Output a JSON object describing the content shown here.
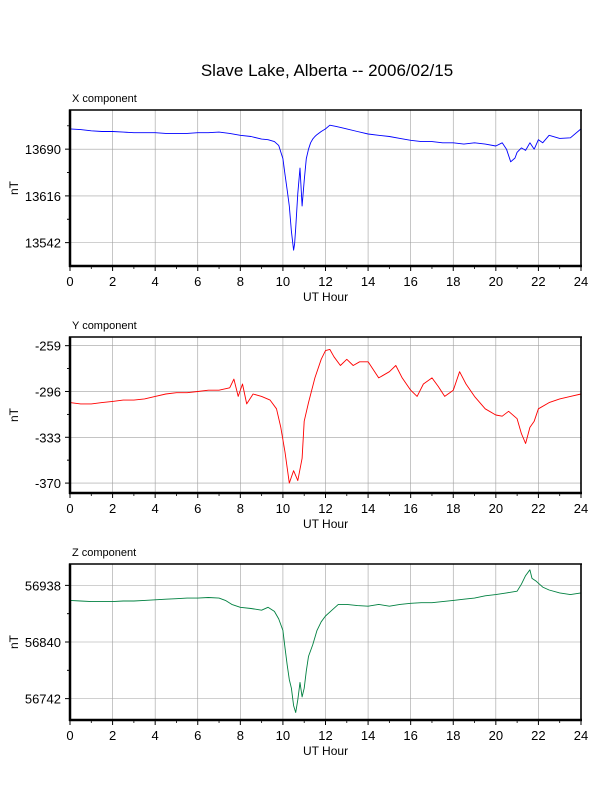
{
  "page": {
    "title": "Slave Lake, Alberta -- 2006/02/15"
  },
  "chart_data": [
    {
      "type": "line",
      "title": "X component",
      "xlabel": "UT Hour",
      "ylabel": "nT",
      "color": "#0000ff",
      "grid": true,
      "xlim": [
        0,
        24
      ],
      "ylim": [
        13505,
        13752
      ],
      "xticks": [
        0,
        2,
        4,
        6,
        8,
        10,
        12,
        14,
        16,
        18,
        20,
        22,
        24
      ],
      "yticks": [
        13542,
        13616,
        13690
      ],
      "series": [
        {
          "x": [
            0,
            0.5,
            1,
            1.5,
            2,
            2.5,
            3,
            3.5,
            4,
            4.5,
            5,
            5.5,
            6,
            6.5,
            7,
            7.5,
            8,
            8.5,
            9,
            9.3,
            9.6,
            9.8,
            10,
            10.1,
            10.2,
            10.3,
            10.4,
            10.5,
            10.55,
            10.6,
            10.7,
            10.8,
            10.9,
            11,
            11.1,
            11.2,
            11.3,
            11.4,
            11.5,
            11.6,
            11.8,
            12,
            12.2,
            12.5,
            13,
            13.5,
            14,
            14.5,
            15,
            15.5,
            16,
            16.5,
            17,
            17.5,
            18,
            18.5,
            19,
            19.5,
            20,
            20.3,
            20.5,
            20.7,
            20.9,
            21,
            21.2,
            21.4,
            21.6,
            21.8,
            22,
            22.2,
            22.5,
            23,
            23.5,
            24
          ],
          "y": [
            13722,
            13721,
            13719,
            13718,
            13718,
            13717,
            13716,
            13716,
            13716,
            13715,
            13715,
            13715,
            13716,
            13716,
            13717,
            13715,
            13712,
            13710,
            13706,
            13705,
            13702,
            13696,
            13675,
            13650,
            13625,
            13600,
            13560,
            13530,
            13540,
            13565,
            13620,
            13660,
            13600,
            13640,
            13675,
            13690,
            13700,
            13706,
            13710,
            13713,
            13718,
            13722,
            13728,
            13726,
            13722,
            13718,
            13714,
            13712,
            13710,
            13707,
            13704,
            13702,
            13702,
            13700,
            13700,
            13698,
            13700,
            13698,
            13695,
            13700,
            13690,
            13670,
            13676,
            13685,
            13692,
            13688,
            13700,
            13690,
            13705,
            13700,
            13712,
            13707,
            13708,
            13722
          ]
        }
      ]
    },
    {
      "type": "line",
      "title": "Y component",
      "xlabel": "UT Hour",
      "ylabel": "nT",
      "color": "#ff0000",
      "grid": true,
      "xlim": [
        0,
        24
      ],
      "ylim": [
        -378,
        -252
      ],
      "xticks": [
        0,
        2,
        4,
        6,
        8,
        10,
        12,
        14,
        16,
        18,
        20,
        22,
        24
      ],
      "yticks": [
        -259,
        -296,
        -333,
        -370
      ],
      "series": [
        {
          "x": [
            0,
            0.5,
            1,
            1.5,
            2,
            2.5,
            3,
            3.5,
            4,
            4.5,
            5,
            5.5,
            6,
            6.5,
            7,
            7.5,
            7.7,
            7.9,
            8.1,
            8.3,
            8.6,
            9,
            9.4,
            9.7,
            9.9,
            10.1,
            10.3,
            10.5,
            10.7,
            10.9,
            11,
            11.2,
            11.5,
            11.8,
            12,
            12.2,
            12.4,
            12.7,
            13,
            13.3,
            13.6,
            14,
            14.5,
            15,
            15.3,
            15.6,
            16,
            16.3,
            16.6,
            17,
            17.3,
            17.6,
            18,
            18.3,
            18.6,
            19,
            19.5,
            20,
            20.3,
            20.6,
            21,
            21.2,
            21.4,
            21.6,
            21.8,
            22,
            22.5,
            23,
            23.5,
            24
          ],
          "y": [
            -305,
            -306,
            -306,
            -305,
            -304,
            -303,
            -303,
            -302,
            -300,
            -298,
            -297,
            -297,
            -296,
            -295,
            -295,
            -293,
            -286,
            -300,
            -290,
            -306,
            -298,
            -300,
            -303,
            -310,
            -325,
            -345,
            -370,
            -360,
            -368,
            -350,
            -320,
            -305,
            -285,
            -270,
            -263,
            -262,
            -268,
            -275,
            -270,
            -275,
            -272,
            -272,
            -285,
            -280,
            -275,
            -285,
            -295,
            -300,
            -290,
            -285,
            -292,
            -300,
            -295,
            -280,
            -290,
            -300,
            -310,
            -315,
            -316,
            -312,
            -318,
            -330,
            -338,
            -325,
            -320,
            -310,
            -305,
            -302,
            -300,
            -298
          ]
        }
      ]
    },
    {
      "type": "line",
      "title": "Z component",
      "xlabel": "UT Hour",
      "ylabel": "nT",
      "color": "#008040",
      "grid": true,
      "xlim": [
        0,
        24
      ],
      "ylim": [
        56705,
        56975
      ],
      "xticks": [
        0,
        2,
        4,
        6,
        8,
        10,
        12,
        14,
        16,
        18,
        20,
        22,
        24
      ],
      "yticks": [
        56742,
        56840,
        56938
      ],
      "series": [
        {
          "x": [
            0,
            0.5,
            1,
            1.5,
            2,
            2.5,
            3,
            3.5,
            4,
            4.5,
            5,
            5.5,
            6,
            6.5,
            7,
            7.3,
            7.6,
            8,
            8.5,
            9,
            9.3,
            9.6,
            9.8,
            10,
            10.1,
            10.2,
            10.3,
            10.4,
            10.5,
            10.6,
            10.7,
            10.8,
            10.9,
            11,
            11.1,
            11.2,
            11.4,
            11.6,
            11.8,
            12,
            12.3,
            12.6,
            13,
            13.5,
            14,
            14.5,
            15,
            15.5,
            16,
            16.5,
            17,
            17.5,
            18,
            18.5,
            19,
            19.5,
            20,
            20.5,
            21,
            21.2,
            21.4,
            21.6,
            21.7,
            21.9,
            22.2,
            22.5,
            23,
            23.5,
            24
          ],
          "y": [
            56912,
            56911,
            56910,
            56910,
            56910,
            56911,
            56911,
            56912,
            56913,
            56914,
            56915,
            56916,
            56916,
            56917,
            56916,
            56912,
            56905,
            56900,
            56898,
            56895,
            56900,
            56893,
            56880,
            56860,
            56830,
            56800,
            56775,
            56760,
            56730,
            56718,
            56740,
            56770,
            56745,
            56760,
            56790,
            56815,
            56835,
            56860,
            56875,
            56885,
            56895,
            56905,
            56905,
            56903,
            56902,
            56905,
            56902,
            56905,
            56907,
            56908,
            56908,
            56910,
            56912,
            56914,
            56916,
            56920,
            56922,
            56925,
            56928,
            56940,
            56955,
            56965,
            56950,
            56945,
            56935,
            56930,
            56925,
            56922,
            56925
          ]
        }
      ]
    }
  ]
}
